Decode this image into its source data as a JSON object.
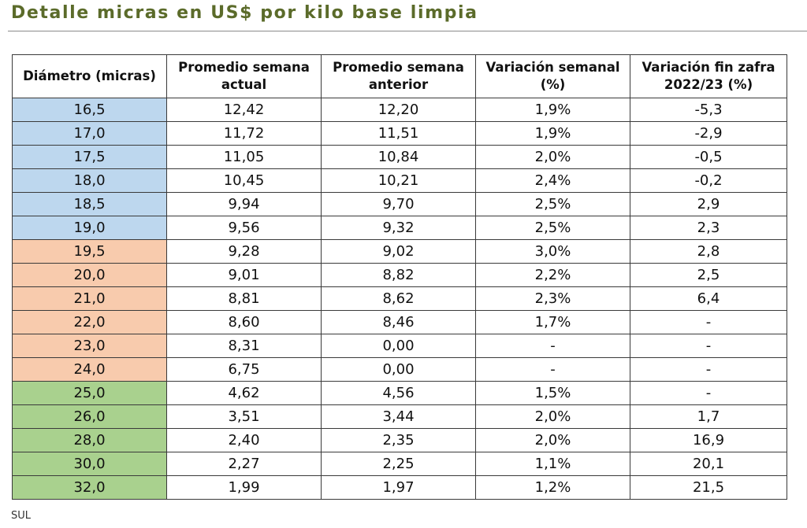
{
  "title": "Detalle micras en US$ por kilo base limpia",
  "source": "SUL",
  "colors": {
    "title": "#5b6b2a",
    "group_blue": "#bdd7ee",
    "group_orange": "#f8cbad",
    "group_green": "#a9d18e"
  },
  "chart_data": {
    "type": "table",
    "title": "Detalle micras en US$ por kilo base limpia",
    "columns": [
      "Diámetro (micras)",
      "Promedio semana actual",
      "Promedio semana anterior",
      "Variación semanal (%)",
      "Variación fin zafra 2022/23 (%)"
    ],
    "rows": [
      {
        "micron": "16,5",
        "group": "blue",
        "actual": "12,42",
        "anterior": "12,20",
        "var_semanal": "1,9%",
        "var_zafra": "-5,3"
      },
      {
        "micron": "17,0",
        "group": "blue",
        "actual": "11,72",
        "anterior": "11,51",
        "var_semanal": "1,9%",
        "var_zafra": "-2,9"
      },
      {
        "micron": "17,5",
        "group": "blue",
        "actual": "11,05",
        "anterior": "10,84",
        "var_semanal": "2,0%",
        "var_zafra": "-0,5"
      },
      {
        "micron": "18,0",
        "group": "blue",
        "actual": "10,45",
        "anterior": "10,21",
        "var_semanal": "2,4%",
        "var_zafra": "-0,2"
      },
      {
        "micron": "18,5",
        "group": "blue",
        "actual": "9,94",
        "anterior": "9,70",
        "var_semanal": "2,5%",
        "var_zafra": "2,9"
      },
      {
        "micron": "19,0",
        "group": "blue",
        "actual": "9,56",
        "anterior": "9,32",
        "var_semanal": "2,5%",
        "var_zafra": "2,3"
      },
      {
        "micron": "19,5",
        "group": "orange",
        "actual": "9,28",
        "anterior": "9,02",
        "var_semanal": "3,0%",
        "var_zafra": "2,8"
      },
      {
        "micron": "20,0",
        "group": "orange",
        "actual": "9,01",
        "anterior": "8,82",
        "var_semanal": "2,2%",
        "var_zafra": "2,5"
      },
      {
        "micron": "21,0",
        "group": "orange",
        "actual": "8,81",
        "anterior": "8,62",
        "var_semanal": "2,3%",
        "var_zafra": "6,4"
      },
      {
        "micron": "22,0",
        "group": "orange",
        "actual": "8,60",
        "anterior": "8,46",
        "var_semanal": "1,7%",
        "var_zafra": "-"
      },
      {
        "micron": "23,0",
        "group": "orange",
        "actual": "8,31",
        "anterior": "0,00",
        "var_semanal": "-",
        "var_zafra": "-"
      },
      {
        "micron": "24,0",
        "group": "orange",
        "actual": "6,75",
        "anterior": "0,00",
        "var_semanal": "-",
        "var_zafra": "-"
      },
      {
        "micron": "25,0",
        "group": "green",
        "actual": "4,62",
        "anterior": "4,56",
        "var_semanal": "1,5%",
        "var_zafra": "-"
      },
      {
        "micron": "26,0",
        "group": "green",
        "actual": "3,51",
        "anterior": "3,44",
        "var_semanal": "2,0%",
        "var_zafra": "1,7"
      },
      {
        "micron": "28,0",
        "group": "green",
        "actual": "2,40",
        "anterior": "2,35",
        "var_semanal": "2,0%",
        "var_zafra": "16,9"
      },
      {
        "micron": "30,0",
        "group": "green",
        "actual": "2,27",
        "anterior": "2,25",
        "var_semanal": "1,1%",
        "var_zafra": "20,1"
      },
      {
        "micron": "32,0",
        "group": "green",
        "actual": "1,99",
        "anterior": "1,97",
        "var_semanal": "1,2%",
        "var_zafra": "21,5"
      }
    ]
  }
}
